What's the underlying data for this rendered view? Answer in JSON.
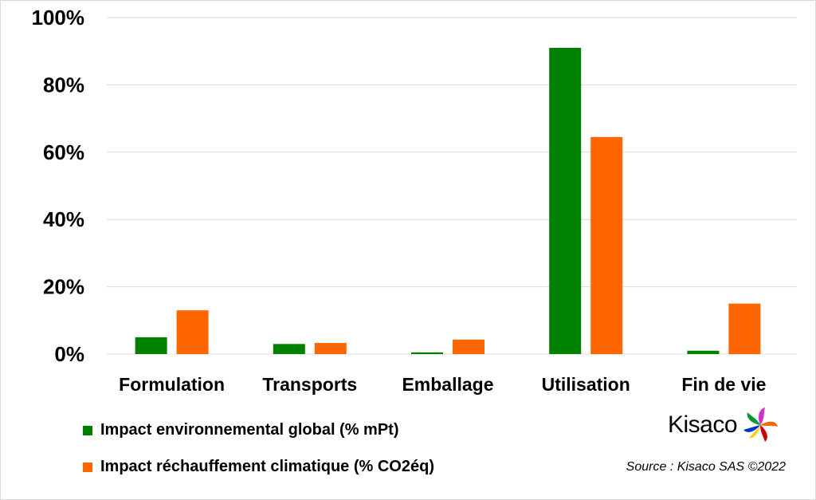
{
  "chart_data": {
    "type": "bar",
    "categories": [
      "Formulation",
      "Transports",
      "Emballage",
      "Utilisation",
      "Fin de vie"
    ],
    "series": [
      {
        "name": "Impact environnemental global (% mPt)",
        "color": "#008000",
        "values": [
          5,
          3,
          0.5,
          91,
          1
        ]
      },
      {
        "name": "Impact réchauffement climatique (% CO2éq)",
        "color": "#ff6600",
        "values": [
          13,
          3.3,
          4.3,
          64.5,
          15
        ]
      }
    ],
    "ylim": [
      0,
      100
    ],
    "yticks": [
      "0%",
      "20%",
      "40%",
      "60%",
      "80%",
      "100%"
    ],
    "grid": true,
    "legend_placement": "bottom-left"
  },
  "logo": {
    "text": "Kisaco"
  },
  "source": "Source : Kisaco SAS ©2022"
}
